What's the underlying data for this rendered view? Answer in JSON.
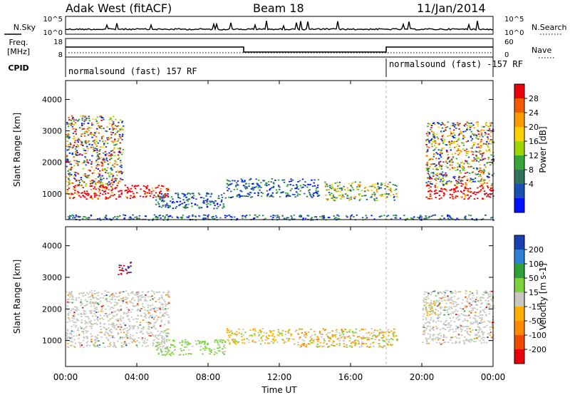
{
  "header": {
    "radar": "Adak West (fitACF)",
    "beam": "Beam 18",
    "date": "11/Jan/2014"
  },
  "top_panels": {
    "nsky_label": "N.Sky",
    "nsky_ticks": [
      "10^5",
      "10^0"
    ],
    "nsearch_label": "N.Search",
    "nsearch_ticks": [
      "10^5",
      "10^0"
    ],
    "freq_label": "Freq.",
    "freq_unit": "[MHz]",
    "freq_ticks": [
      "18",
      "8"
    ],
    "nave_label": "Nave",
    "nave_ticks": [
      "60",
      "0"
    ],
    "cpid_label": "CPID",
    "cpid_segments": [
      {
        "label": "normalsound (fast) 157 RF",
        "start_h": 0,
        "end_h": 18
      },
      {
        "label": "normalsound (fast) -157 RF",
        "start_h": 18,
        "end_h": 24
      }
    ],
    "freq_steps": [
      {
        "start_h": 0,
        "end_h": 10,
        "level": "high"
      },
      {
        "start_h": 10,
        "end_h": 18,
        "level": "low"
      },
      {
        "start_h": 18,
        "end_h": 24,
        "level": "high"
      }
    ]
  },
  "chart_data": [
    {
      "type": "heatmap",
      "title": "",
      "quantity": "Power",
      "xlabel": "Time UT",
      "ylabel": "Slant Range [km]",
      "x_ticks": [
        "00:00",
        "04:00",
        "08:00",
        "12:00",
        "16:00",
        "20:00",
        "00:00"
      ],
      "xlim_hours": [
        0,
        24
      ],
      "y_ticks": [
        1000,
        2000,
        3000,
        4000
      ],
      "ylim": [
        180,
        4600
      ],
      "colorbar": {
        "label": "Power [dB]",
        "ticks": [
          "28",
          "24",
          "20",
          "16",
          "12",
          "8",
          "4"
        ],
        "colors": [
          "#e8000a",
          "#f25a00",
          "#ff9b00",
          "#ffd100",
          "#9fd400",
          "#37a63a",
          "#31735a",
          "#1a4fb4",
          "#0011ff"
        ]
      },
      "echo_regions": [
        {
          "t0": 0.0,
          "t1": 5.8,
          "r0": 850,
          "r1": 1300,
          "level": "high"
        },
        {
          "t0": 0.0,
          "t1": 3.2,
          "r0": 1300,
          "r1": 3500,
          "level": "mixed"
        },
        {
          "t0": 5.0,
          "t1": 9.0,
          "r0": 550,
          "r1": 1050,
          "level": "low"
        },
        {
          "t0": 9.0,
          "t1": 14.2,
          "r0": 900,
          "r1": 1500,
          "level": "low"
        },
        {
          "t0": 14.5,
          "t1": 18.6,
          "r0": 800,
          "r1": 1400,
          "level": "mid"
        },
        {
          "t0": 20.2,
          "t1": 24.0,
          "r0": 850,
          "r1": 1300,
          "level": "high"
        },
        {
          "t0": 20.2,
          "t1": 24.0,
          "r0": 1300,
          "r1": 3300,
          "level": "mixed"
        },
        {
          "t0": 0.0,
          "t1": 24.0,
          "r0": 180,
          "r1": 350,
          "level": "low"
        }
      ]
    },
    {
      "type": "heatmap",
      "title": "",
      "quantity": "Velocity",
      "xlabel": "Time UT",
      "ylabel": "Slant Range [km]",
      "x_ticks": [
        "00:00",
        "04:00",
        "08:00",
        "12:00",
        "16:00",
        "20:00",
        "00:00"
      ],
      "xlim_hours": [
        0,
        24
      ],
      "y_ticks": [
        1000,
        2000,
        3000,
        4000
      ],
      "ylim": [
        180,
        4600
      ],
      "colorbar": {
        "label": "Velocity [m s-1]",
        "ticks": [
          "200",
          "100",
          "50",
          "15",
          "-15",
          "-50",
          "-100",
          "-200"
        ],
        "colors": [
          "#1a3fb0",
          "#2f7fd8",
          "#2f9f3a",
          "#7cd23f",
          "#c8c8c0",
          "#ffb000",
          "#ff8a00",
          "#f04a00",
          "#e8000a"
        ]
      },
      "echo_regions": [
        {
          "t0": 0.0,
          "t1": 5.8,
          "r0": 800,
          "r1": 2600,
          "level": "grey"
        },
        {
          "t0": 2.9,
          "t1": 3.7,
          "r0": 3100,
          "r1": 3500,
          "level": "red"
        },
        {
          "t0": 5.0,
          "t1": 9.0,
          "r0": 550,
          "r1": 1050,
          "level": "green"
        },
        {
          "t0": 9.0,
          "t1": 13.0,
          "r0": 900,
          "r1": 1400,
          "level": "orange"
        },
        {
          "t0": 13.0,
          "t1": 18.6,
          "r0": 800,
          "r1": 1400,
          "level": "mixed"
        },
        {
          "t0": 20.0,
          "t1": 24.0,
          "r0": 900,
          "r1": 2600,
          "level": "grey"
        },
        {
          "t0": 20.2,
          "t1": 20.8,
          "r0": 1800,
          "r1": 2300,
          "level": "orange"
        }
      ]
    }
  ]
}
